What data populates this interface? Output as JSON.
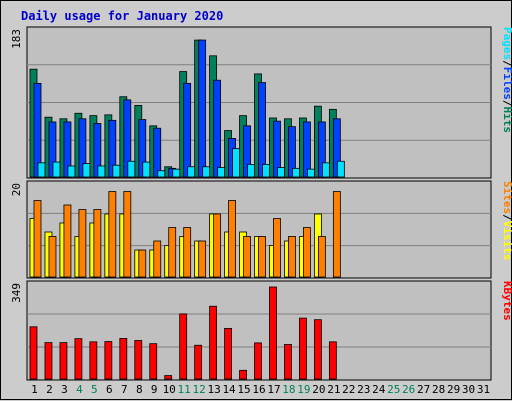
{
  "chart_data": {
    "type": "bar",
    "title": "Daily usage for January 2020",
    "categories": [
      "1",
      "2",
      "3",
      "4",
      "5",
      "6",
      "7",
      "8",
      "9",
      "10",
      "11",
      "12",
      "13",
      "14",
      "15",
      "16",
      "17",
      "18",
      "19",
      "20",
      "21",
      "22",
      "23",
      "24",
      "25",
      "26",
      "27",
      "28",
      "29",
      "30",
      "31"
    ],
    "weekend_days": [
      "4",
      "5",
      "11",
      "12",
      "18",
      "19",
      "25",
      "26"
    ],
    "panels": [
      {
        "id": "hits-files-pages",
        "ymax_label": "183",
        "ymax": 183,
        "side_labels": [
          "Pages",
          "/",
          "Files",
          "/",
          "Hits"
        ],
        "side_colors": [
          "#00e0ff",
          "#000000",
          "#0040ff",
          "#000000",
          "#00805c"
        ],
        "series": [
          {
            "key": "Hits",
            "color": "#00805c",
            "values": [
              137,
              76,
              74,
              81,
              78,
              79,
              102,
              91,
              65,
              13,
              134,
              174,
              154,
              59,
              78,
              131,
              75,
              74,
              75,
              90,
              86,
              0,
              0,
              0,
              0,
              0,
              0,
              0,
              0,
              0,
              0
            ]
          },
          {
            "key": "Files",
            "color": "#0040ff",
            "values": [
              119,
              70,
              70,
              74,
              68,
              72,
              98,
              73,
              62,
              11,
              119,
              174,
              123,
              49,
              65,
              120,
              71,
              64,
              70,
              70,
              74,
              0,
              0,
              0,
              0,
              0,
              0,
              0,
              0,
              0,
              0
            ]
          },
          {
            "key": "Pages",
            "color": "#00e0ff",
            "values": [
              18,
              19,
              14,
              17,
              14,
              15,
              20,
              19,
              8,
              10,
              13,
              13,
              12,
              36,
              16,
              16,
              12,
              11,
              10,
              18,
              20,
              0,
              0,
              0,
              0,
              0,
              0,
              0,
              0,
              0,
              0
            ]
          }
        ]
      },
      {
        "id": "visits-sites",
        "ymax_label": "20",
        "ymax": 20,
        "side_labels": [
          "Sites",
          "/",
          "Visits"
        ],
        "side_colors": [
          "#ff8000",
          "#000000",
          "#ffff00"
        ],
        "series": [
          {
            "key": "Visits",
            "color": "#ffff00",
            "values": [
              13,
              10,
              12,
              9,
              12,
              14,
              14,
              6,
              6,
              7,
              9,
              8,
              14,
              10,
              10,
              9,
              7,
              8,
              9,
              14,
              0,
              0,
              0,
              0,
              0,
              0,
              0,
              0,
              0,
              0,
              0
            ]
          },
          {
            "key": "Sites",
            "color": "#ff8000",
            "values": [
              17,
              9,
              16,
              15,
              15,
              19,
              19,
              6,
              8,
              11,
              11,
              8,
              14,
              17,
              9,
              9,
              13,
              9,
              11,
              9,
              19,
              0,
              0,
              0,
              0,
              0,
              0,
              0,
              0,
              0,
              0
            ]
          }
        ]
      },
      {
        "id": "kbytes",
        "ymax_label": "349",
        "ymax": 349,
        "side_labels": [
          "KBytes"
        ],
        "side_colors": [
          "#ff0000"
        ],
        "series": [
          {
            "key": "KBytes",
            "color": "#ff0000",
            "values": [
              198,
              138,
              138,
              153,
              141,
              142,
              154,
              146,
              134,
              13,
              247,
              128,
              276,
              192,
              33,
              137,
              349,
              131,
              231,
              225,
              141,
              0,
              0,
              0,
              0,
              0,
              0,
              0,
              0,
              0,
              0
            ]
          }
        ]
      }
    ],
    "colors": {
      "plot_bg": "#c0c0c0",
      "grid": "#808080",
      "weekday_tick": "#000000",
      "weekend_tick": "#00805c"
    }
  }
}
